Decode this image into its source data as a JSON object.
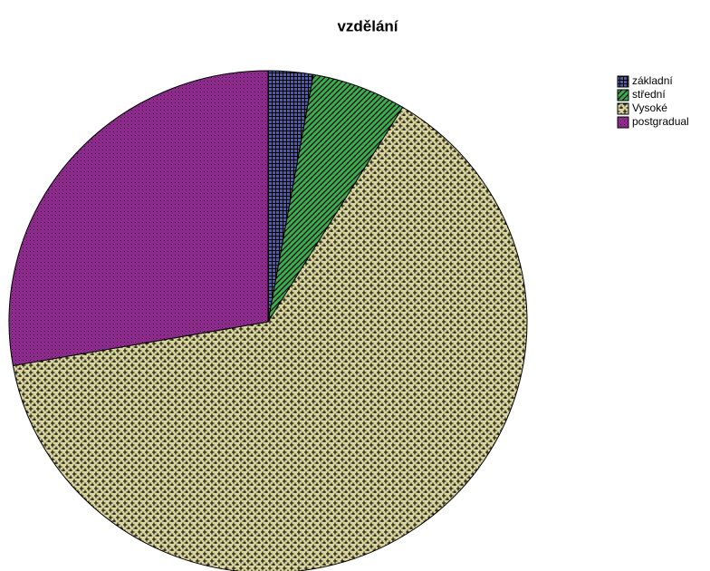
{
  "chart_data": {
    "type": "pie",
    "title": "vzdělání",
    "categories": [
      "základní",
      "střední",
      "Vysoké",
      "postgradual"
    ],
    "values": [
      2.8,
      5.9,
      63.5,
      27.8
    ],
    "colors": [
      "#4a5cc4",
      "#3cae4c",
      "#d9d59c",
      "#8c2a8c"
    ],
    "legend": "top-right"
  }
}
